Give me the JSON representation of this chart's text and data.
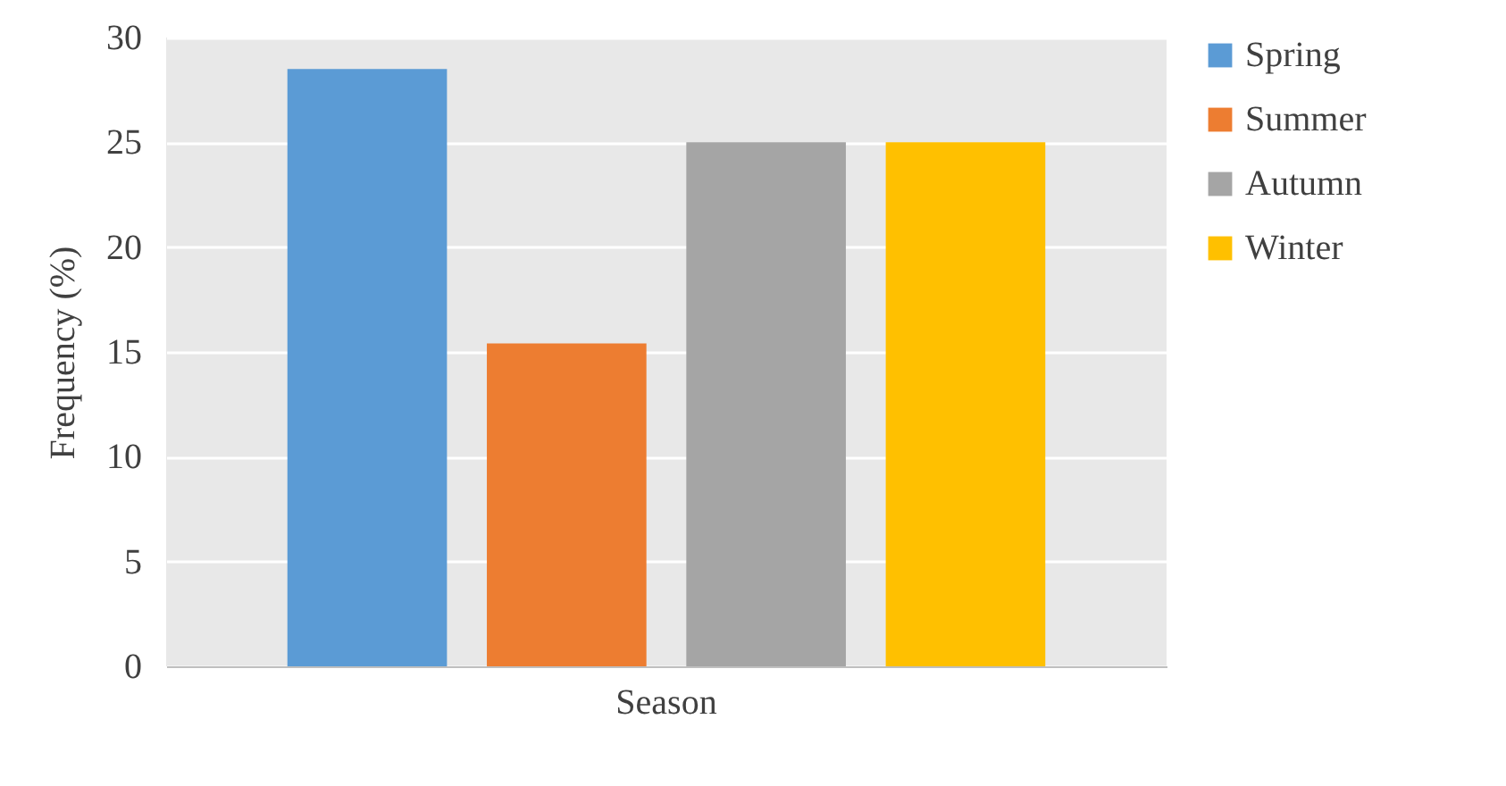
{
  "chart_data": {
    "type": "bar",
    "ylabel": "Frequency (%)",
    "categories": [
      "Season"
    ],
    "series": [
      {
        "name": "Spring",
        "color": "#5b9bd5",
        "values": [
          28.5
        ]
      },
      {
        "name": "Summer",
        "color": "#ed7d31",
        "values": [
          15.4
        ]
      },
      {
        "name": "Autumn",
        "color": "#a5a5a5",
        "values": [
          25
        ]
      },
      {
        "name": "Winter",
        "color": "#ffc000",
        "values": [
          25
        ]
      }
    ],
    "ylim": [
      0,
      30
    ],
    "yticks": [
      0,
      5,
      10,
      15,
      20,
      25,
      30
    ],
    "grid": "y",
    "legend": "right"
  }
}
